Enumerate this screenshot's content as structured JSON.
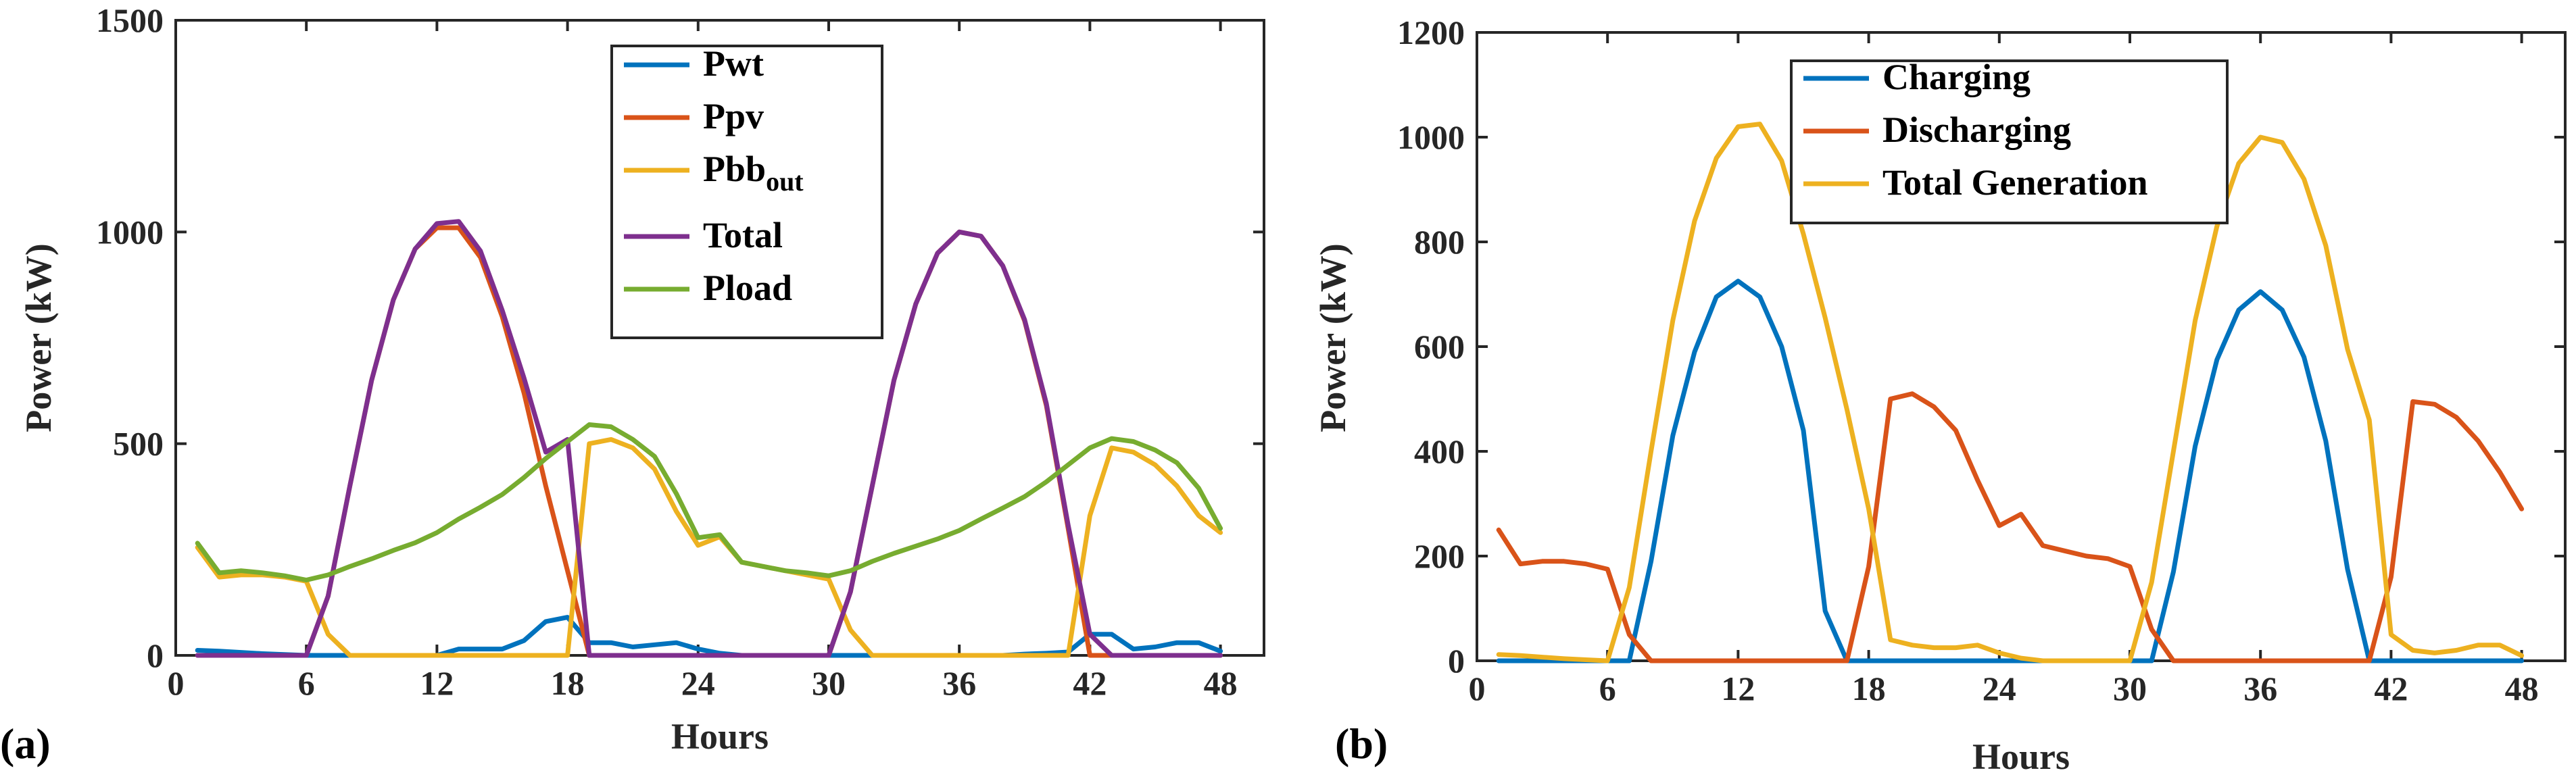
{
  "colors": {
    "blue": "#0072BD",
    "orange": "#D95319",
    "yellow": "#EDB120",
    "purple": "#7E2F8E",
    "green": "#77AC30"
  },
  "chart_data": [
    {
      "type": "line",
      "panel_label": "(a)",
      "xlabel": "Hours",
      "ylabel": "Power (kW)",
      "xlim": [
        0,
        50
      ],
      "ylim": [
        0,
        1500
      ],
      "xticks": [
        0,
        6,
        12,
        18,
        24,
        30,
        36,
        42,
        48
      ],
      "yticks": [
        0,
        500,
        1000,
        1500
      ],
      "legend_position": "top-center",
      "x": [
        1,
        2,
        3,
        4,
        5,
        6,
        7,
        8,
        9,
        10,
        11,
        12,
        13,
        14,
        15,
        16,
        17,
        18,
        19,
        20,
        21,
        22,
        23,
        24,
        25,
        26,
        27,
        28,
        29,
        30,
        31,
        32,
        33,
        34,
        35,
        36,
        37,
        38,
        39,
        40,
        41,
        42,
        43,
        44,
        45,
        46,
        47,
        48
      ],
      "series": [
        {
          "name": "Pwt",
          "legend_main": "Pwt",
          "legend_sub": "",
          "color": "blue",
          "values": [
            12,
            10,
            7,
            4,
            2,
            0,
            0,
            0,
            0,
            0,
            0,
            0,
            15,
            15,
            15,
            35,
            80,
            90,
            30,
            30,
            20,
            25,
            30,
            15,
            5,
            0,
            0,
            0,
            0,
            0,
            0,
            0,
            0,
            0,
            0,
            0,
            0,
            0,
            3,
            5,
            8,
            50,
            50,
            15,
            20,
            30,
            30,
            10
          ]
        },
        {
          "name": "Ppv",
          "legend_main": "Ppv",
          "legend_sub": "",
          "color": "orange",
          "values": [
            0,
            0,
            0,
            0,
            0,
            0,
            140,
            400,
            650,
            840,
            960,
            1010,
            1010,
            940,
            800,
            620,
            400,
            200,
            0,
            0,
            0,
            0,
            0,
            0,
            0,
            0,
            0,
            0,
            0,
            0,
            150,
            400,
            650,
            830,
            950,
            1000,
            990,
            920,
            790,
            590,
            300,
            0,
            0,
            0,
            0,
            0,
            0,
            0
          ]
        },
        {
          "name": "Pbb_out",
          "legend_main": "Pbb",
          "legend_sub": "out",
          "color": "yellow",
          "values": [
            255,
            185,
            190,
            190,
            185,
            175,
            50,
            0,
            0,
            0,
            0,
            0,
            0,
            0,
            0,
            0,
            0,
            0,
            500,
            510,
            490,
            440,
            340,
            260,
            280,
            220,
            210,
            200,
            190,
            180,
            60,
            0,
            0,
            0,
            0,
            0,
            0,
            0,
            0,
            0,
            0,
            330,
            490,
            480,
            450,
            400,
            330,
            290
          ]
        },
        {
          "name": "Total",
          "legend_main": "Total",
          "legend_sub": "",
          "color": "purple",
          "values": [
            0,
            0,
            0,
            0,
            0,
            0,
            140,
            400,
            650,
            840,
            960,
            1020,
            1025,
            955,
            815,
            655,
            480,
            510,
            0,
            0,
            0,
            0,
            0,
            0,
            0,
            0,
            0,
            0,
            0,
            0,
            150,
            400,
            650,
            830,
            950,
            1000,
            990,
            920,
            793,
            595,
            308,
            50,
            0,
            0,
            0,
            0,
            0,
            0
          ]
        },
        {
          "name": "Pload",
          "legend_main": "Pload",
          "legend_sub": "",
          "color": "green",
          "values": [
            265,
            195,
            200,
            195,
            188,
            178,
            190,
            210,
            228,
            248,
            266,
            290,
            322,
            350,
            380,
            420,
            465,
            505,
            545,
            540,
            510,
            470,
            382,
            278,
            285,
            220,
            210,
            200,
            195,
            188,
            200,
            222,
            241,
            258,
            275,
            295,
            322,
            348,
            375,
            410,
            450,
            490,
            512,
            505,
            485,
            455,
            395,
            300
          ]
        }
      ]
    },
    {
      "type": "line",
      "panel_label": "(b)",
      "xlabel": "Hours",
      "ylabel": "Power (kW)",
      "xlim": [
        0,
        50
      ],
      "ylim": [
        0,
        1200
      ],
      "xticks": [
        0,
        6,
        12,
        18,
        24,
        30,
        36,
        42,
        48
      ],
      "yticks": [
        0,
        200,
        400,
        600,
        800,
        1000,
        1200
      ],
      "legend_position": "top-left",
      "x": [
        1,
        2,
        3,
        4,
        5,
        6,
        7,
        8,
        9,
        10,
        11,
        12,
        13,
        14,
        15,
        16,
        17,
        18,
        19,
        20,
        21,
        22,
        23,
        24,
        25,
        26,
        27,
        28,
        29,
        30,
        31,
        32,
        33,
        34,
        35,
        36,
        37,
        38,
        39,
        40,
        41,
        42,
        43,
        44,
        45,
        46,
        47,
        48
      ],
      "series": [
        {
          "name": "Charging",
          "color": "blue",
          "values": [
            0,
            0,
            0,
            0,
            0,
            0,
            0,
            190,
            430,
            590,
            695,
            725,
            695,
            600,
            440,
            95,
            0,
            0,
            0,
            0,
            0,
            0,
            0,
            0,
            0,
            0,
            0,
            0,
            0,
            0,
            0,
            170,
            410,
            575,
            670,
            705,
            670,
            580,
            420,
            175,
            0,
            0,
            0,
            0,
            0,
            0,
            0,
            0
          ]
        },
        {
          "name": "Discharging",
          "color": "orange",
          "values": [
            250,
            185,
            190,
            190,
            185,
            175,
            50,
            0,
            0,
            0,
            0,
            0,
            0,
            0,
            0,
            0,
            0,
            180,
            500,
            510,
            485,
            440,
            345,
            258,
            280,
            220,
            210,
            200,
            195,
            180,
            60,
            0,
            0,
            0,
            0,
            0,
            0,
            0,
            0,
            0,
            0,
            160,
            495,
            490,
            465,
            420,
            360,
            290
          ]
        },
        {
          "name": "Total Generation",
          "color": "yellow",
          "values": [
            12,
            10,
            7,
            4,
            2,
            0,
            140,
            400,
            650,
            840,
            960,
            1020,
            1025,
            955,
            815,
            655,
            480,
            290,
            40,
            30,
            25,
            25,
            30,
            15,
            5,
            0,
            0,
            0,
            0,
            0,
            150,
            400,
            650,
            830,
            950,
            1000,
            990,
            920,
            793,
            595,
            460,
            50,
            20,
            15,
            20,
            30,
            30,
            10
          ]
        }
      ]
    }
  ]
}
